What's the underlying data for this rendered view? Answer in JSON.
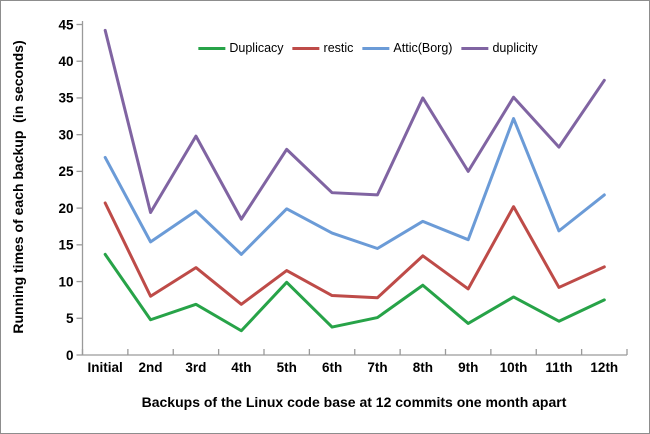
{
  "chart_data": {
    "type": "line",
    "title": "",
    "xlabel": "Backups of the Linux code base at 12 commits one month apart",
    "ylabel": "Running times of each backup  (in seconds)",
    "categories": [
      "Initial",
      "2nd",
      "3rd",
      "4th",
      "5th",
      "6th",
      "7th",
      "8th",
      "9th",
      "10th",
      "11th",
      "12th"
    ],
    "series": [
      {
        "name": "Duplicacy",
        "color": "#27A348",
        "values": [
          13.7,
          4.8,
          6.9,
          3.3,
          9.9,
          3.8,
          5.1,
          9.5,
          4.3,
          7.9,
          4.6,
          7.5
        ]
      },
      {
        "name": "restic",
        "color": "#BE4B48",
        "values": [
          20.7,
          8.0,
          11.9,
          6.9,
          11.5,
          8.1,
          7.8,
          13.5,
          9.0,
          20.2,
          9.2,
          12.0
        ]
      },
      {
        "name": "Attic(Borg)",
        "color": "#6B9BD7",
        "values": [
          26.9,
          15.4,
          19.6,
          13.7,
          19.9,
          16.6,
          14.5,
          18.2,
          15.7,
          32.2,
          16.9,
          21.8
        ]
      },
      {
        "name": "duplicity",
        "color": "#8064A2",
        "values": [
          44.2,
          19.4,
          29.8,
          18.5,
          28.0,
          22.1,
          21.8,
          35.0,
          25.0,
          35.1,
          28.3,
          37.4
        ]
      }
    ],
    "ylim": [
      0,
      45
    ],
    "ytick_interval": 5,
    "yticks": [
      0,
      5,
      10,
      15,
      20,
      25,
      30,
      35,
      40,
      45
    ],
    "grid": false,
    "legend_position": "top-center-horizontal",
    "axis_color": "#9a9a9a",
    "text_color": "#000000",
    "line_width": 3
  }
}
